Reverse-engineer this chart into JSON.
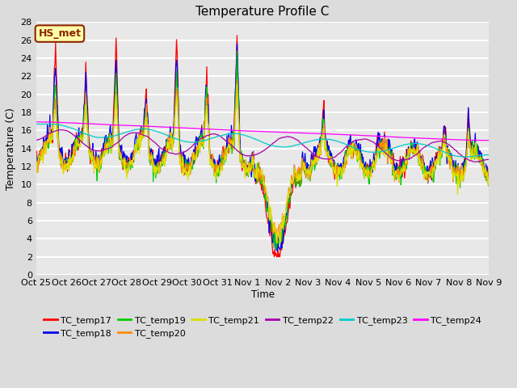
{
  "title": "Temperature Profile C",
  "xlabel": "Time",
  "ylabel": "Temperature (C)",
  "ylim": [
    0,
    28
  ],
  "annotation_text": "HS_met",
  "annotation_color": "#8B2500",
  "annotation_bg": "#FFFFAA",
  "series_colors": {
    "TC_temp17": "#FF0000",
    "TC_temp18": "#0000EE",
    "TC_temp19": "#00CC00",
    "TC_temp20": "#FF8C00",
    "TC_temp21": "#DDDD00",
    "TC_temp22": "#AA00AA",
    "TC_temp23": "#00CCCC",
    "TC_temp24": "#FF00FF"
  },
  "xtick_labels": [
    "Oct 25",
    "Oct 26",
    "Oct 27",
    "Oct 28",
    "Oct 29",
    "Oct 30",
    "Oct 31",
    "Nov 1",
    "Nov 2",
    "Nov 3",
    "Nov 4",
    "Nov 5",
    "Nov 6",
    "Nov 7",
    "Nov 8",
    "Nov 9"
  ],
  "legend_ncol": 6,
  "fig_bg": "#DCDCDC",
  "plot_bg": "#E8E8E8"
}
